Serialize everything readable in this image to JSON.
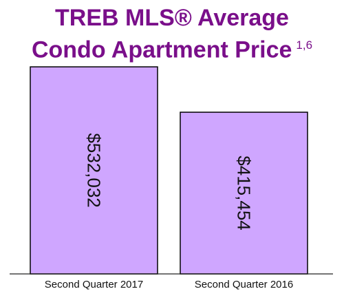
{
  "chart_data": {
    "type": "bar",
    "title_line1": "TREB MLS® Average",
    "title_line2": "Condo Apartment Price",
    "title_superscript": "1,6",
    "categories": [
      "Second Quarter 2017",
      "Second Quarter 2016"
    ],
    "values": [
      532032,
      415454
    ],
    "value_labels": [
      "$532,032",
      "$415,454"
    ],
    "ylim": [
      0,
      580000
    ],
    "grid": false,
    "legend": "none",
    "bar_color": "#cfa6ff",
    "title_color": "#7a0f8a"
  }
}
